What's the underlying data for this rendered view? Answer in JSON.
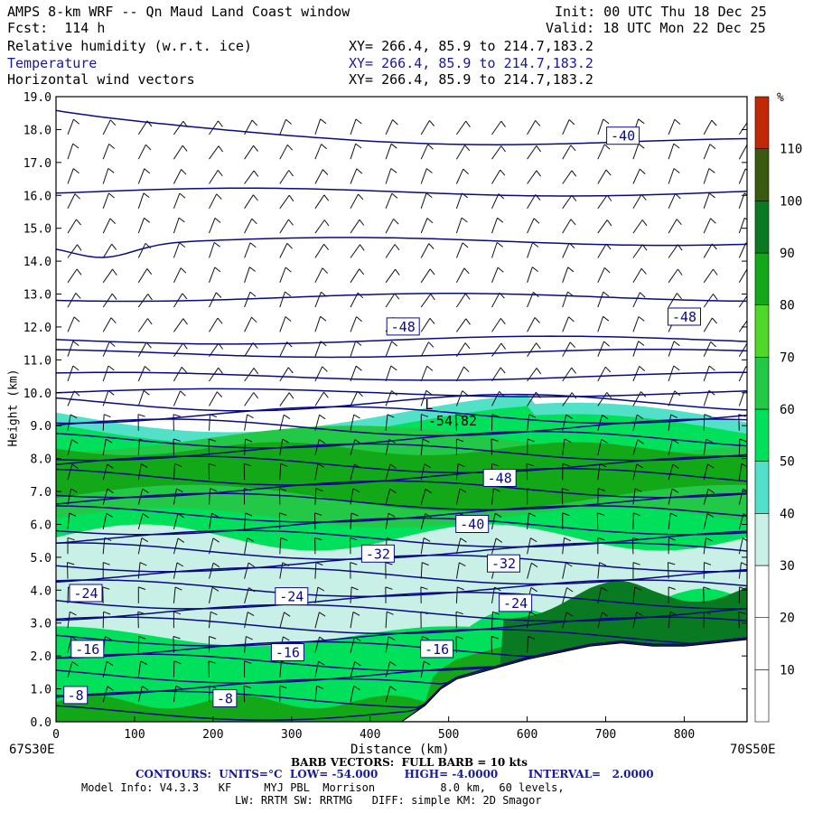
{
  "header": {
    "title": "AMPS 8-km WRF -- Qn Maud Land Coast window",
    "fcst": "Fcst:  114 h",
    "init": "Init: 00 UTC Thu 18 Dec 25",
    "valid": "Valid: 18 UTC Mon 22 Dec 25",
    "field1_label": "Relative humidity (w.r.t. ice)",
    "field2_label": "Temperature",
    "field3_label": "Horizontal wind vectors",
    "xy1": "XY= 266.4, 85.9 to 214.7,183.2",
    "xy2": "XY= 266.4, 85.9 to 214.7,183.2",
    "xy3": "XY= 266.4, 85.9 to 214.7,183.2"
  },
  "axes": {
    "ylabel": "Height (km)",
    "xlabel": "Distance (km)",
    "left_coord": "67S30E",
    "right_coord": "70S50E"
  },
  "footer": {
    "barb_line": "BARB VECTORS:  FULL BARB = 10 kts",
    "contours_line": "CONTOURS:  UNITS=°C  LOW= -54.000       HIGH= -4.0000        INTERVAL=   2.0000",
    "model_info": "Model Info: V4.3.3   KF     MYJ PBL  Morrison          8.0 km,  60 levels,",
    "physics": "LW: RRTM SW: RRTMG   DIFF: simple KM: 2D Smagor"
  },
  "colorbar": {
    "unit": "%",
    "labels": [
      "10",
      "20",
      "30",
      "40",
      "50",
      "60",
      "70",
      "80",
      "90",
      "100",
      "110"
    ],
    "colors": [
      "#ffffff",
      "#ffffff",
      "#ffffff",
      "#c8f0e6",
      "#52e0c8",
      "#00e05a",
      "#22c846",
      "#50d828",
      "#12a818",
      "#0a7a22",
      "#3a5a10",
      "#c02808"
    ]
  },
  "chart_data": {
    "type": "heatmap",
    "title": "AMPS 8-km WRF -- Qn Maud Land Coast window",
    "xlabel": "Distance (km)",
    "ylabel": "Height (km)",
    "xlim": [
      0,
      880
    ],
    "ylim": [
      0,
      19
    ],
    "xticks": [
      0,
      100,
      200,
      300,
      400,
      500,
      600,
      700,
      800
    ],
    "yticks": [
      "0.0",
      "1.0",
      "2.0",
      "3.0",
      "4.0",
      "5.0",
      "6.0",
      "7.0",
      "8.0",
      "9.0",
      "10.0",
      "11.0",
      "12.0",
      "13.0",
      "14.0",
      "15.0",
      "16.0",
      "17.0",
      "18.0",
      "19.0"
    ],
    "contour_units": "°C",
    "contour_interval": 2,
    "contour_low": -54,
    "contour_high": -4,
    "contour_labels": [
      {
        "text": "-40",
        "x": 722,
        "y": 17.8
      },
      {
        "text": "-48",
        "x": 442,
        "y": 12.0
      },
      {
        "text": "-48",
        "x": 800,
        "y": 12.3
      },
      {
        "text": "-54.82",
        "x": 505,
        "y": 9.0
      },
      {
        "text": "L",
        "x": 475,
        "y": 9.5
      },
      {
        "text": "-48",
        "x": 565,
        "y": 7.4
      },
      {
        "text": "-40",
        "x": 530,
        "y": 6.0
      },
      {
        "text": "-32",
        "x": 410,
        "y": 5.1
      },
      {
        "text": "-32",
        "x": 570,
        "y": 4.8
      },
      {
        "text": "-24",
        "x": 38,
        "y": 3.9
      },
      {
        "text": "-24",
        "x": 300,
        "y": 3.8
      },
      {
        "text": "-24",
        "x": 585,
        "y": 3.6
      },
      {
        "text": "-16",
        "x": 40,
        "y": 2.2
      },
      {
        "text": "-16",
        "x": 295,
        "y": 2.1
      },
      {
        "text": "-16",
        "x": 485,
        "y": 2.2
      },
      {
        "text": "-8",
        "x": 25,
        "y": 0.8
      },
      {
        "text": "-8",
        "x": 215,
        "y": 0.7
      }
    ],
    "terrain": [
      [
        440,
        0
      ],
      [
        470,
        0.5
      ],
      [
        490,
        1.0
      ],
      [
        510,
        1.3
      ],
      [
        540,
        1.5
      ],
      [
        570,
        1.7
      ],
      [
        600,
        1.9
      ],
      [
        640,
        2.1
      ],
      [
        680,
        2.3
      ],
      [
        720,
        2.4
      ],
      [
        760,
        2.3
      ],
      [
        800,
        2.3
      ],
      [
        840,
        2.4
      ],
      [
        880,
        2.5
      ]
    ],
    "rh_bands": [
      {
        "value": 40,
        "color": "#c8f0e6"
      },
      {
        "value": 60,
        "color": "#00e05a"
      },
      {
        "value": 80,
        "color": "#12a818"
      }
    ],
    "low_center_temp": -54.82
  }
}
